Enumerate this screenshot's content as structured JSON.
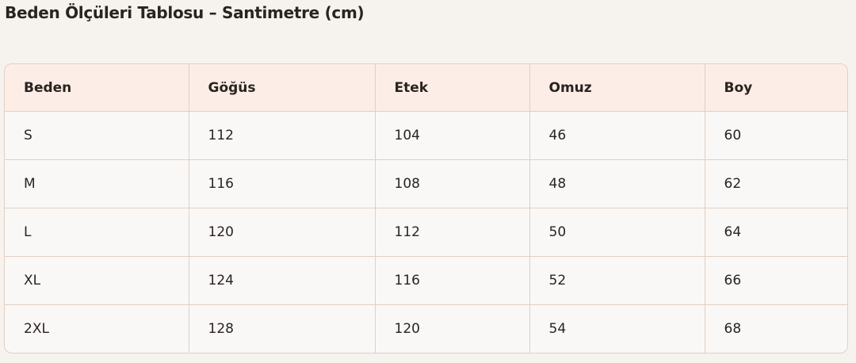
{
  "title": "Beden Ölçüleri Tablosu – Santimetre (cm)",
  "table": {
    "headers": [
      "Beden",
      "Göğüs",
      "Etek",
      "Omuz",
      "Boy"
    ],
    "rows": [
      [
        "S",
        "112",
        "104",
        "46",
        "60"
      ],
      [
        "M",
        "116",
        "108",
        "48",
        "62"
      ],
      [
        "L",
        "120",
        "112",
        "50",
        "64"
      ],
      [
        "XL",
        "124",
        "116",
        "52",
        "66"
      ],
      [
        "2XL",
        "128",
        "120",
        "54",
        "68"
      ]
    ]
  },
  "colors": {
    "background": "#f6f3ef",
    "header": "#fceee6",
    "border": "#e0cfc4"
  }
}
